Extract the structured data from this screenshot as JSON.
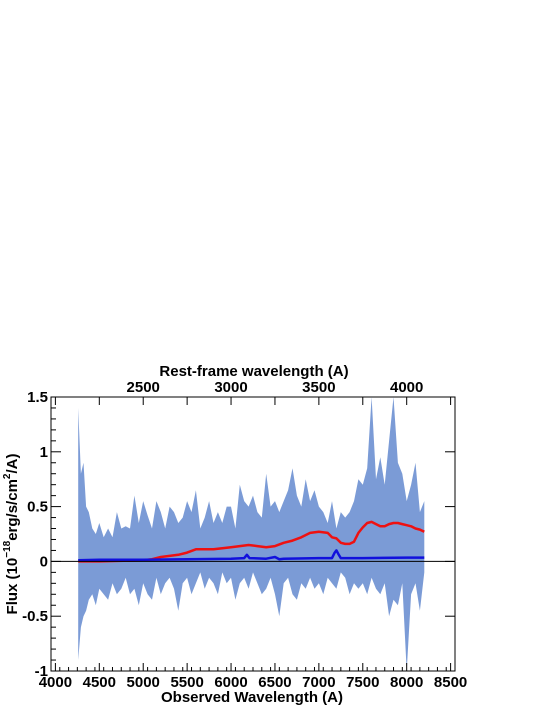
{
  "chart_data": {
    "type": "area",
    "xlabel": "Observed Wavelength (A)",
    "ylabel": "Flux (10^-18 erg/s/cm^2/A)",
    "ylabel_parts": [
      "Flux (10",
      "−18",
      "erg/s/cm",
      "2",
      "/A)"
    ],
    "x2label": "Rest-frame wavelength (A)",
    "xlim": [
      3950,
      8550
    ],
    "ylim": [
      -1,
      1.5
    ],
    "xticks": [
      4000,
      4500,
      5000,
      5500,
      6000,
      6500,
      7000,
      7500,
      8000,
      8500
    ],
    "yticks": [
      -1,
      -0.5,
      0,
      0.5,
      1,
      1.5
    ],
    "x2ticks": [
      2500,
      3000,
      3500,
      4000
    ],
    "redshift": 1.0,
    "grid": false,
    "series": [
      {
        "kind": "band",
        "color": "#7b9bd6",
        "x": [
          4260,
          4290,
          4320,
          4350,
          4380,
          4420,
          4460,
          4500,
          4550,
          4600,
          4650,
          4700,
          4750,
          4800,
          4850,
          4900,
          4950,
          5000,
          5050,
          5100,
          5150,
          5200,
          5250,
          5300,
          5350,
          5400,
          5450,
          5500,
          5550,
          5600,
          5650,
          5700,
          5750,
          5800,
          5850,
          5900,
          5950,
          6000,
          6050,
          6100,
          6150,
          6200,
          6250,
          6300,
          6350,
          6400,
          6450,
          6500,
          6550,
          6600,
          6650,
          6700,
          6750,
          6800,
          6850,
          6900,
          6950,
          7000,
          7050,
          7100,
          7150,
          7200,
          7250,
          7300,
          7350,
          7400,
          7450,
          7500,
          7550,
          7600,
          7650,
          7700,
          7750,
          7800,
          7850,
          7900,
          7950,
          8000,
          8050,
          8100,
          8150,
          8200
        ],
        "upper": [
          1.4,
          0.8,
          0.9,
          0.5,
          0.45,
          0.3,
          0.25,
          0.35,
          0.22,
          0.3,
          0.22,
          0.45,
          0.3,
          0.32,
          0.3,
          0.6,
          0.35,
          0.55,
          0.42,
          0.3,
          0.55,
          0.45,
          0.3,
          0.5,
          0.45,
          0.35,
          0.4,
          0.55,
          0.45,
          0.65,
          0.3,
          0.4,
          0.55,
          0.35,
          0.45,
          0.35,
          0.5,
          0.5,
          0.3,
          0.7,
          0.55,
          0.5,
          0.6,
          0.45,
          0.4,
          0.8,
          0.5,
          0.55,
          0.45,
          0.55,
          0.65,
          0.85,
          0.6,
          0.5,
          0.75,
          0.55,
          0.65,
          0.5,
          0.45,
          0.35,
          0.55,
          0.3,
          0.45,
          0.4,
          0.45,
          0.55,
          0.75,
          0.7,
          0.85,
          1.5,
          0.75,
          0.95,
          0.7,
          1.1,
          1.5,
          0.9,
          0.8,
          0.55,
          0.7,
          0.9,
          0.45,
          0.55
        ],
        "lower": [
          -0.9,
          -0.6,
          -0.5,
          -0.45,
          -0.35,
          -0.3,
          -0.4,
          -0.25,
          -0.3,
          -0.35,
          -0.2,
          -0.3,
          -0.25,
          -0.15,
          -0.3,
          -0.25,
          -0.4,
          -0.2,
          -0.3,
          -0.35,
          -0.15,
          -0.3,
          -0.2,
          -0.15,
          -0.25,
          -0.45,
          -0.2,
          -0.15,
          -0.3,
          -0.2,
          -0.1,
          -0.25,
          -0.15,
          -0.2,
          -0.3,
          -0.1,
          -0.2,
          -0.15,
          -0.35,
          -0.2,
          -0.15,
          -0.25,
          -0.1,
          -0.2,
          -0.3,
          -0.25,
          -0.15,
          -0.3,
          -0.5,
          -0.2,
          -0.15,
          -0.3,
          -0.35,
          -0.2,
          -0.25,
          -0.15,
          -0.25,
          -0.2,
          -0.3,
          -0.15,
          -0.2,
          -0.25,
          -0.1,
          -0.15,
          -0.3,
          -0.2,
          -0.25,
          -0.2,
          -0.3,
          -0.15,
          -0.25,
          -0.3,
          -0.2,
          -0.5,
          -0.35,
          -0.4,
          -0.2,
          -1.0,
          -0.3,
          -0.2,
          -0.45,
          -0.1
        ]
      },
      {
        "kind": "line",
        "color": "#ee1111",
        "x": [
          4260,
          4500,
          5000,
          5100,
          5200,
          5300,
          5400,
          5500,
          5600,
          5700,
          5800,
          5900,
          6000,
          6100,
          6200,
          6300,
          6400,
          6500,
          6600,
          6700,
          6800,
          6900,
          7000,
          7100,
          7150,
          7200,
          7250,
          7300,
          7350,
          7400,
          7450,
          7500,
          7550,
          7600,
          7650,
          7700,
          7750,
          7800,
          7850,
          7900,
          7950,
          8000,
          8050,
          8100,
          8150,
          8200
        ],
        "y": [
          0.0,
          0.0,
          0.01,
          0.02,
          0.04,
          0.05,
          0.06,
          0.08,
          0.11,
          0.11,
          0.11,
          0.12,
          0.13,
          0.14,
          0.15,
          0.14,
          0.13,
          0.14,
          0.17,
          0.19,
          0.22,
          0.26,
          0.27,
          0.26,
          0.22,
          0.21,
          0.17,
          0.16,
          0.16,
          0.18,
          0.26,
          0.31,
          0.35,
          0.36,
          0.34,
          0.32,
          0.32,
          0.34,
          0.35,
          0.35,
          0.34,
          0.33,
          0.32,
          0.3,
          0.29,
          0.27
        ]
      },
      {
        "kind": "line",
        "color": "#1111dd",
        "x": [
          4260,
          4500,
          5000,
          5500,
          6000,
          6150,
          6180,
          6210,
          6400,
          6500,
          6550,
          6600,
          7000,
          7150,
          7180,
          7200,
          7220,
          7250,
          7500,
          8000,
          8200
        ],
        "y": [
          0.01,
          0.015,
          0.015,
          0.02,
          0.025,
          0.03,
          0.06,
          0.03,
          0.025,
          0.04,
          0.02,
          0.025,
          0.03,
          0.03,
          0.08,
          0.1,
          0.07,
          0.03,
          0.03,
          0.035,
          0.035
        ]
      }
    ]
  }
}
